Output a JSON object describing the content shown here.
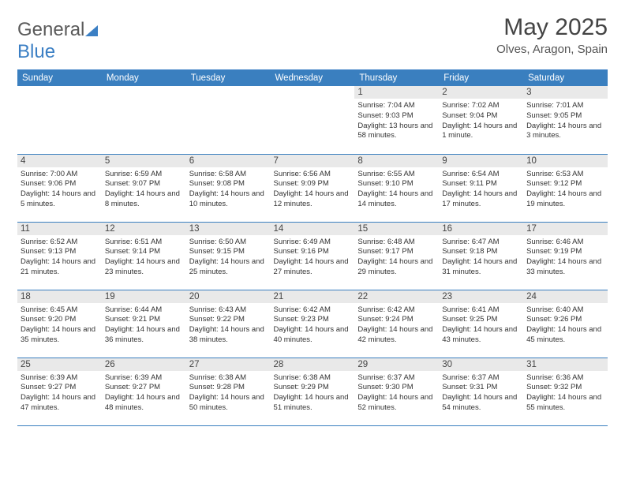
{
  "logo": {
    "word1": "General",
    "word2": "Blue"
  },
  "header": {
    "title": "May 2025",
    "subtitle": "Olves, Aragon, Spain"
  },
  "weekdays": [
    "Sunday",
    "Monday",
    "Tuesday",
    "Wednesday",
    "Thursday",
    "Friday",
    "Saturday"
  ],
  "colors": {
    "accent": "#3a7fbf",
    "rule": "#3b7fc4",
    "daybg": "#e9e9e9",
    "text": "#333333"
  },
  "weeks": [
    [
      {
        "n": "",
        "sunrise": "",
        "sunset": "",
        "daylight": ""
      },
      {
        "n": "",
        "sunrise": "",
        "sunset": "",
        "daylight": ""
      },
      {
        "n": "",
        "sunrise": "",
        "sunset": "",
        "daylight": ""
      },
      {
        "n": "",
        "sunrise": "",
        "sunset": "",
        "daylight": ""
      },
      {
        "n": "1",
        "sunrise": "Sunrise: 7:04 AM",
        "sunset": "Sunset: 9:03 PM",
        "daylight": "Daylight: 13 hours and 58 minutes."
      },
      {
        "n": "2",
        "sunrise": "Sunrise: 7:02 AM",
        "sunset": "Sunset: 9:04 PM",
        "daylight": "Daylight: 14 hours and 1 minute."
      },
      {
        "n": "3",
        "sunrise": "Sunrise: 7:01 AM",
        "sunset": "Sunset: 9:05 PM",
        "daylight": "Daylight: 14 hours and 3 minutes."
      }
    ],
    [
      {
        "n": "4",
        "sunrise": "Sunrise: 7:00 AM",
        "sunset": "Sunset: 9:06 PM",
        "daylight": "Daylight: 14 hours and 5 minutes."
      },
      {
        "n": "5",
        "sunrise": "Sunrise: 6:59 AM",
        "sunset": "Sunset: 9:07 PM",
        "daylight": "Daylight: 14 hours and 8 minutes."
      },
      {
        "n": "6",
        "sunrise": "Sunrise: 6:58 AM",
        "sunset": "Sunset: 9:08 PM",
        "daylight": "Daylight: 14 hours and 10 minutes."
      },
      {
        "n": "7",
        "sunrise": "Sunrise: 6:56 AM",
        "sunset": "Sunset: 9:09 PM",
        "daylight": "Daylight: 14 hours and 12 minutes."
      },
      {
        "n": "8",
        "sunrise": "Sunrise: 6:55 AM",
        "sunset": "Sunset: 9:10 PM",
        "daylight": "Daylight: 14 hours and 14 minutes."
      },
      {
        "n": "9",
        "sunrise": "Sunrise: 6:54 AM",
        "sunset": "Sunset: 9:11 PM",
        "daylight": "Daylight: 14 hours and 17 minutes."
      },
      {
        "n": "10",
        "sunrise": "Sunrise: 6:53 AM",
        "sunset": "Sunset: 9:12 PM",
        "daylight": "Daylight: 14 hours and 19 minutes."
      }
    ],
    [
      {
        "n": "11",
        "sunrise": "Sunrise: 6:52 AM",
        "sunset": "Sunset: 9:13 PM",
        "daylight": "Daylight: 14 hours and 21 minutes."
      },
      {
        "n": "12",
        "sunrise": "Sunrise: 6:51 AM",
        "sunset": "Sunset: 9:14 PM",
        "daylight": "Daylight: 14 hours and 23 minutes."
      },
      {
        "n": "13",
        "sunrise": "Sunrise: 6:50 AM",
        "sunset": "Sunset: 9:15 PM",
        "daylight": "Daylight: 14 hours and 25 minutes."
      },
      {
        "n": "14",
        "sunrise": "Sunrise: 6:49 AM",
        "sunset": "Sunset: 9:16 PM",
        "daylight": "Daylight: 14 hours and 27 minutes."
      },
      {
        "n": "15",
        "sunrise": "Sunrise: 6:48 AM",
        "sunset": "Sunset: 9:17 PM",
        "daylight": "Daylight: 14 hours and 29 minutes."
      },
      {
        "n": "16",
        "sunrise": "Sunrise: 6:47 AM",
        "sunset": "Sunset: 9:18 PM",
        "daylight": "Daylight: 14 hours and 31 minutes."
      },
      {
        "n": "17",
        "sunrise": "Sunrise: 6:46 AM",
        "sunset": "Sunset: 9:19 PM",
        "daylight": "Daylight: 14 hours and 33 minutes."
      }
    ],
    [
      {
        "n": "18",
        "sunrise": "Sunrise: 6:45 AM",
        "sunset": "Sunset: 9:20 PM",
        "daylight": "Daylight: 14 hours and 35 minutes."
      },
      {
        "n": "19",
        "sunrise": "Sunrise: 6:44 AM",
        "sunset": "Sunset: 9:21 PM",
        "daylight": "Daylight: 14 hours and 36 minutes."
      },
      {
        "n": "20",
        "sunrise": "Sunrise: 6:43 AM",
        "sunset": "Sunset: 9:22 PM",
        "daylight": "Daylight: 14 hours and 38 minutes."
      },
      {
        "n": "21",
        "sunrise": "Sunrise: 6:42 AM",
        "sunset": "Sunset: 9:23 PM",
        "daylight": "Daylight: 14 hours and 40 minutes."
      },
      {
        "n": "22",
        "sunrise": "Sunrise: 6:42 AM",
        "sunset": "Sunset: 9:24 PM",
        "daylight": "Daylight: 14 hours and 42 minutes."
      },
      {
        "n": "23",
        "sunrise": "Sunrise: 6:41 AM",
        "sunset": "Sunset: 9:25 PM",
        "daylight": "Daylight: 14 hours and 43 minutes."
      },
      {
        "n": "24",
        "sunrise": "Sunrise: 6:40 AM",
        "sunset": "Sunset: 9:26 PM",
        "daylight": "Daylight: 14 hours and 45 minutes."
      }
    ],
    [
      {
        "n": "25",
        "sunrise": "Sunrise: 6:39 AM",
        "sunset": "Sunset: 9:27 PM",
        "daylight": "Daylight: 14 hours and 47 minutes."
      },
      {
        "n": "26",
        "sunrise": "Sunrise: 6:39 AM",
        "sunset": "Sunset: 9:27 PM",
        "daylight": "Daylight: 14 hours and 48 minutes."
      },
      {
        "n": "27",
        "sunrise": "Sunrise: 6:38 AM",
        "sunset": "Sunset: 9:28 PM",
        "daylight": "Daylight: 14 hours and 50 minutes."
      },
      {
        "n": "28",
        "sunrise": "Sunrise: 6:38 AM",
        "sunset": "Sunset: 9:29 PM",
        "daylight": "Daylight: 14 hours and 51 minutes."
      },
      {
        "n": "29",
        "sunrise": "Sunrise: 6:37 AM",
        "sunset": "Sunset: 9:30 PM",
        "daylight": "Daylight: 14 hours and 52 minutes."
      },
      {
        "n": "30",
        "sunrise": "Sunrise: 6:37 AM",
        "sunset": "Sunset: 9:31 PM",
        "daylight": "Daylight: 14 hours and 54 minutes."
      },
      {
        "n": "31",
        "sunrise": "Sunrise: 6:36 AM",
        "sunset": "Sunset: 9:32 PM",
        "daylight": "Daylight: 14 hours and 55 minutes."
      }
    ]
  ]
}
